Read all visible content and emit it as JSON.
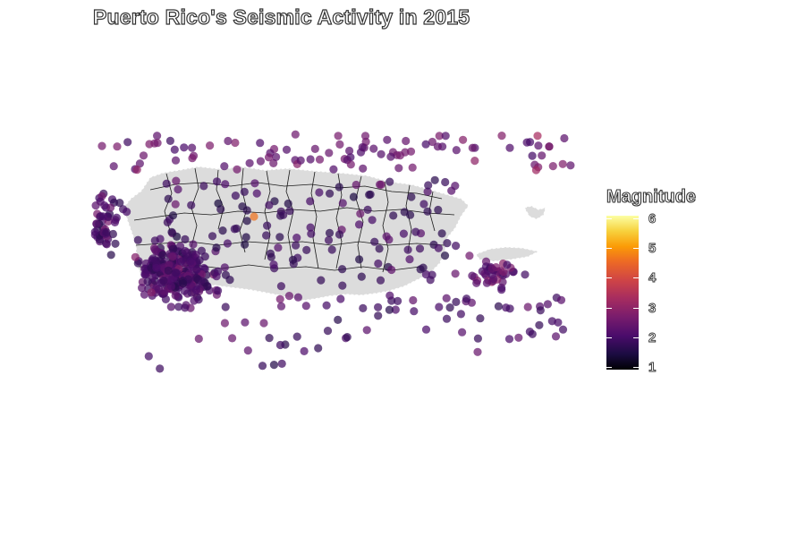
{
  "title": "Puerto Rico's Seismic Activity in 2015",
  "legend": {
    "title": "Magnitude",
    "colormap": "inferno",
    "ticks": [
      "1",
      "2",
      "3",
      "4",
      "5",
      "6"
    ]
  },
  "colors": {
    "land_fill": "#dcdcdc",
    "border": "#1a1a1a"
  },
  "scale": {
    "min": 1,
    "max": 6
  }
}
